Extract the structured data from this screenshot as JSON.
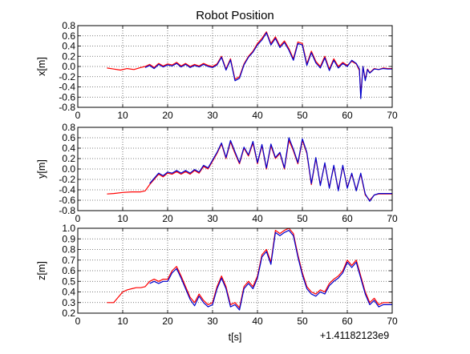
{
  "title": "Robot Position",
  "offset_label": "+1.41182123e9",
  "colors": {
    "series_a": "#ff0000",
    "series_b": "#0000cc",
    "grid": "#555555",
    "frame": "#000000"
  },
  "chart_data": [
    {
      "type": "line",
      "ylabel": "x[m]",
      "xlim": [
        0,
        70
      ],
      "ylim": [
        -0.8,
        0.8
      ],
      "xticks": [
        0,
        10,
        20,
        30,
        40,
        50,
        60,
        70
      ],
      "yticks": [
        -0.8,
        -0.6,
        -0.4,
        -0.2,
        0.0,
        0.2,
        0.4,
        0.6,
        0.8
      ],
      "grid": true,
      "series": [
        {
          "color": "#ff0000",
          "x": [
            6.5,
            8,
            9.5,
            11,
            12.5,
            14,
            15,
            16,
            17,
            18,
            19,
            20,
            21,
            22,
            23,
            24,
            25,
            26,
            27,
            28,
            29,
            30,
            31,
            32,
            33,
            34,
            35,
            36,
            37,
            38,
            39,
            40,
            41,
            42,
            43,
            44,
            45,
            46,
            47,
            48,
            49,
            50,
            51,
            52,
            53,
            54,
            55,
            56,
            57,
            58,
            59,
            60,
            61,
            62,
            62.7,
            63,
            63.5,
            64,
            64.5,
            65,
            66,
            67,
            68,
            69,
            70
          ],
          "y": [
            -0.03,
            -0.05,
            -0.07,
            -0.04,
            -0.06,
            -0.02,
            0.0,
            0.04,
            -0.02,
            0.06,
            0.01,
            0.05,
            0.03,
            0.08,
            0.01,
            0.06,
            0.0,
            0.04,
            0.01,
            0.06,
            0.02,
            0.0,
            0.05,
            0.2,
            -0.05,
            0.15,
            -0.25,
            -0.2,
            0.05,
            0.2,
            0.3,
            0.45,
            0.55,
            0.68,
            0.45,
            0.58,
            0.4,
            0.5,
            0.35,
            0.15,
            0.48,
            0.45,
            0.05,
            0.3,
            0.1,
            0.0,
            0.2,
            -0.05,
            0.15,
            0.0,
            0.08,
            0.02,
            0.1,
            0.05,
            -0.08,
            -0.55,
            0.0,
            -0.25,
            -0.05,
            -0.12,
            -0.04,
            -0.06,
            -0.03,
            -0.04,
            -0.04
          ]
        },
        {
          "color": "#0000cc",
          "x": [
            15,
            16,
            17,
            18,
            19,
            20,
            21,
            22,
            23,
            24,
            25,
            26,
            27,
            28,
            29,
            30,
            31,
            32,
            33,
            34,
            35,
            36,
            37,
            38,
            39,
            40,
            41,
            42,
            43,
            44,
            45,
            46,
            47,
            48,
            49,
            50,
            51,
            52,
            53,
            54,
            55,
            56,
            57,
            58,
            59,
            60,
            61,
            62,
            62.7,
            63,
            63.5,
            64,
            64.5,
            65,
            66,
            67,
            68,
            69,
            70
          ],
          "y": [
            -0.02,
            0.02,
            -0.04,
            0.04,
            -0.01,
            0.03,
            0.01,
            0.06,
            -0.01,
            0.04,
            -0.02,
            0.02,
            -0.01,
            0.04,
            0.0,
            -0.02,
            0.03,
            0.18,
            -0.07,
            0.13,
            -0.28,
            -0.23,
            0.03,
            0.18,
            0.28,
            0.42,
            0.52,
            0.66,
            0.42,
            0.55,
            0.37,
            0.47,
            0.32,
            0.12,
            0.45,
            0.42,
            0.02,
            0.27,
            0.07,
            -0.03,
            0.17,
            -0.08,
            0.12,
            -0.03,
            0.06,
            0.0,
            0.12,
            0.06,
            -0.05,
            -0.63,
            0.0,
            -0.28,
            -0.06,
            -0.13,
            -0.05,
            -0.06,
            -0.04,
            -0.05,
            -0.05
          ]
        }
      ]
    },
    {
      "type": "line",
      "ylabel": "y[m]",
      "xlim": [
        0,
        70
      ],
      "ylim": [
        -0.8,
        0.8
      ],
      "xticks": [
        0,
        10,
        20,
        30,
        40,
        50,
        60,
        70
      ],
      "yticks": [
        -0.8,
        -0.6,
        -0.4,
        -0.2,
        0.0,
        0.2,
        0.4,
        0.6,
        0.8
      ],
      "grid": true,
      "series": [
        {
          "color": "#ff0000",
          "x": [
            6.5,
            8,
            10,
            12,
            14,
            15,
            16,
            17,
            18,
            19,
            20,
            21,
            22,
            23,
            24,
            25,
            26,
            27,
            28,
            29,
            30,
            31,
            32,
            33,
            34,
            35,
            36,
            37,
            38,
            39,
            40,
            41,
            42,
            43,
            44,
            45,
            46,
            47,
            48,
            49,
            50,
            51,
            52,
            53,
            54,
            55,
            56,
            57,
            58,
            59,
            60,
            61,
            62,
            63,
            64,
            65,
            66,
            67,
            68,
            69,
            70
          ],
          "y": [
            -0.48,
            -0.47,
            -0.45,
            -0.44,
            -0.44,
            -0.42,
            -0.3,
            -0.2,
            -0.1,
            -0.15,
            -0.08,
            -0.1,
            -0.05,
            -0.1,
            -0.05,
            -0.1,
            -0.03,
            -0.08,
            0.05,
            0.0,
            0.15,
            0.3,
            0.48,
            0.2,
            0.52,
            0.3,
            0.1,
            0.4,
            0.25,
            0.5,
            0.1,
            0.45,
            0.0,
            0.45,
            0.2,
            0.3,
            0.0,
            0.55,
            0.35,
            0.1,
            0.55,
            0.3,
            -0.3,
            0.2,
            -0.3,
            0.1,
            -0.35,
            0.05,
            -0.4,
            0.05,
            -0.35,
            -0.1,
            -0.4,
            -0.1,
            -0.5,
            -0.6,
            -0.5,
            -0.48,
            -0.48,
            -0.48,
            -0.48
          ]
        },
        {
          "color": "#0000cc",
          "x": [
            16,
            17,
            18,
            19,
            20,
            21,
            22,
            23,
            24,
            25,
            26,
            27,
            28,
            29,
            30,
            31,
            32,
            33,
            34,
            35,
            36,
            37,
            38,
            39,
            40,
            41,
            42,
            43,
            44,
            45,
            46,
            47,
            48,
            49,
            50,
            51,
            52,
            53,
            54,
            55,
            56,
            57,
            58,
            59,
            60,
            61,
            62,
            63,
            64,
            65,
            66,
            67,
            68,
            69,
            70
          ],
          "y": [
            -0.28,
            -0.18,
            -0.08,
            -0.13,
            -0.06,
            -0.08,
            -0.03,
            -0.08,
            -0.03,
            -0.08,
            -0.01,
            -0.06,
            0.07,
            0.02,
            0.17,
            0.32,
            0.5,
            0.22,
            0.55,
            0.33,
            0.12,
            0.42,
            0.27,
            0.53,
            0.12,
            0.47,
            0.02,
            0.48,
            0.22,
            0.32,
            0.02,
            0.6,
            0.38,
            0.12,
            0.58,
            0.32,
            -0.28,
            0.22,
            -0.32,
            0.12,
            -0.37,
            0.07,
            -0.42,
            0.07,
            -0.37,
            -0.08,
            -0.42,
            -0.08,
            -0.48,
            -0.62,
            -0.5,
            -0.47,
            -0.47,
            -0.47,
            -0.47
          ]
        }
      ]
    },
    {
      "type": "line",
      "ylabel": "z[m]",
      "xlabel": "t[s]",
      "xlim": [
        0,
        70
      ],
      "ylim": [
        0.2,
        1.0
      ],
      "xticks": [
        0,
        10,
        20,
        30,
        40,
        50,
        60,
        70
      ],
      "yticks": [
        0.2,
        0.3,
        0.4,
        0.5,
        0.6,
        0.7,
        0.8,
        0.9,
        1.0
      ],
      "grid": true,
      "series": [
        {
          "color": "#ff0000",
          "x": [
            6.5,
            8,
            9,
            10,
            11,
            12,
            13,
            14,
            15,
            16,
            17,
            18,
            19,
            20,
            21,
            22,
            23,
            24,
            25,
            26,
            27,
            28,
            29,
            30,
            31,
            32,
            33,
            34,
            35,
            36,
            37,
            38,
            39,
            40,
            41,
            42,
            43,
            44,
            45,
            46,
            47,
            48,
            49,
            50,
            51,
            52,
            53,
            54,
            55,
            56,
            57,
            58,
            59,
            60,
            61,
            62,
            63,
            64,
            65,
            66,
            67,
            68,
            69,
            70
          ],
          "y": [
            0.3,
            0.3,
            0.35,
            0.4,
            0.42,
            0.43,
            0.44,
            0.44,
            0.45,
            0.5,
            0.52,
            0.5,
            0.52,
            0.52,
            0.6,
            0.64,
            0.55,
            0.45,
            0.35,
            0.3,
            0.38,
            0.32,
            0.28,
            0.3,
            0.45,
            0.55,
            0.45,
            0.28,
            0.3,
            0.25,
            0.45,
            0.5,
            0.45,
            0.55,
            0.75,
            0.8,
            0.68,
            0.98,
            0.95,
            0.98,
            1.0,
            0.95,
            0.75,
            0.58,
            0.45,
            0.4,
            0.38,
            0.42,
            0.4,
            0.48,
            0.52,
            0.55,
            0.6,
            0.7,
            0.65,
            0.7,
            0.55,
            0.4,
            0.3,
            0.34,
            0.28,
            0.3,
            0.3,
            0.3
          ]
        },
        {
          "color": "#0000cc",
          "x": [
            16,
            17,
            18,
            19,
            20,
            21,
            22,
            23,
            24,
            25,
            26,
            27,
            28,
            29,
            30,
            31,
            32,
            33,
            34,
            35,
            36,
            37,
            38,
            39,
            40,
            41,
            42,
            43,
            44,
            45,
            46,
            47,
            48,
            49,
            50,
            51,
            52,
            53,
            54,
            55,
            56,
            57,
            58,
            59,
            60,
            61,
            62,
            63,
            64,
            65,
            66,
            67,
            68,
            69,
            70
          ],
          "y": [
            0.48,
            0.5,
            0.48,
            0.5,
            0.5,
            0.58,
            0.62,
            0.53,
            0.43,
            0.33,
            0.27,
            0.36,
            0.3,
            0.26,
            0.28,
            0.43,
            0.53,
            0.43,
            0.26,
            0.28,
            0.23,
            0.43,
            0.48,
            0.43,
            0.53,
            0.73,
            0.78,
            0.66,
            0.96,
            0.93,
            0.96,
            0.98,
            0.93,
            0.73,
            0.56,
            0.43,
            0.38,
            0.36,
            0.4,
            0.38,
            0.46,
            0.5,
            0.53,
            0.58,
            0.68,
            0.63,
            0.68,
            0.53,
            0.38,
            0.28,
            0.32,
            0.26,
            0.28,
            0.28,
            0.28
          ]
        }
      ]
    }
  ]
}
